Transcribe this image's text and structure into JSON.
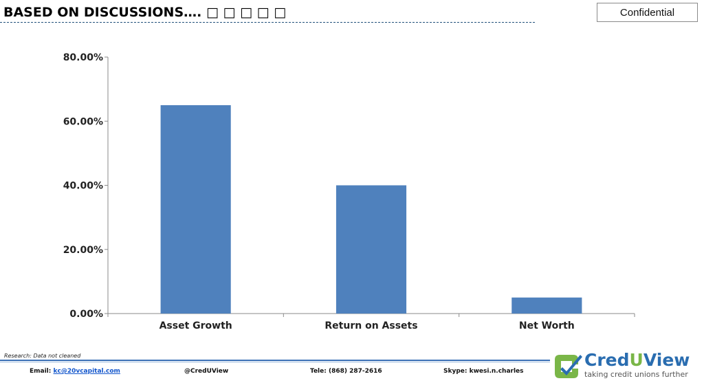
{
  "header": {
    "title": "BASED ON DISCUSSIONS…. □ □ □ □ □",
    "confidential_label": "Confidential",
    "rule_color": "#1f4e79"
  },
  "chart_data": {
    "type": "bar",
    "categories": [
      "Asset Growth",
      "Return on Assets",
      "Net Worth"
    ],
    "values": [
      65,
      40,
      5
    ],
    "ylim": [
      0,
      80
    ],
    "yticks": [
      0,
      20,
      40,
      60,
      80
    ],
    "ytick_labels": [
      "0.00%",
      "20.00%",
      "40.00%",
      "60.00%",
      "80.00%"
    ],
    "bar_color": "#4f81bd",
    "grid": false,
    "legend": "none",
    "xlabel": "",
    "ylabel": ""
  },
  "note": "Research: Data not cleaned",
  "footer": {
    "email_prefix": "Email: ",
    "email": "kc@20vcapital.com",
    "twitter": "@CredUView",
    "phone": "Tele: (868) 287-2616",
    "skype": "Skype: kwesi.n.charles",
    "rule_color": "#3a6fb5"
  },
  "logo": {
    "cred": "Cred",
    "u": "U",
    "view": "View",
    "tagline": "taking credit unions further",
    "primary_color": "#2a6db0",
    "accent_color": "#7ab648"
  }
}
